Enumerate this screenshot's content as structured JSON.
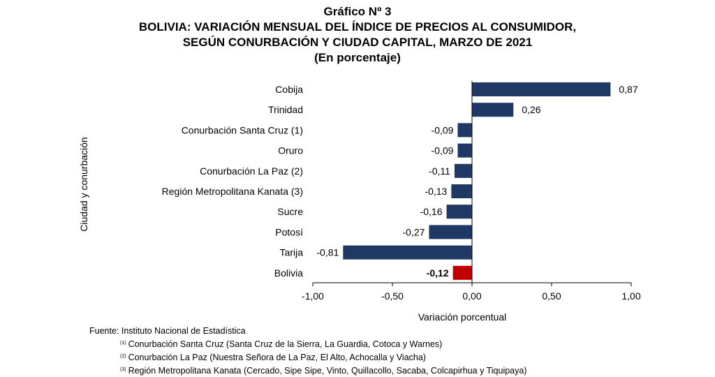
{
  "header": {
    "title_line1": "Gráfico Nº 3",
    "title_line2": "BOLIVIA: VARIACIÓN MENSUAL DEL ÍNDICE DE PRECIOS AL CONSUMIDOR,",
    "title_line3": "SEGÚN CONURBACIÓN Y CIUDAD CAPITAL, MARZO DE 2021",
    "title_line4": "(En porcentaje)"
  },
  "chart_data": {
    "type": "bar",
    "orientation": "horizontal",
    "categories": [
      "Cobija",
      "Trinidad",
      "Conurbación Santa Cruz (1)",
      "Oruro",
      "Conurbación La Paz (2)",
      "Región Metropolitana Kanata (3)",
      "Sucre",
      "Potosí",
      "Tarija",
      "Bolivia"
    ],
    "values": [
      0.87,
      0.26,
      -0.09,
      -0.09,
      -0.11,
      -0.13,
      -0.16,
      -0.27,
      -0.81,
      -0.12
    ],
    "value_labels": [
      "0,87",
      "0,26",
      "-0,09",
      "-0,09",
      "-0,11",
      "-0,13",
      "-0,16",
      "-0,27",
      "-0,81",
      "-0,12"
    ],
    "highlight_index": 9,
    "bar_color": "#1f3864",
    "highlight_color": "#c00000",
    "xlim": [
      -1.0,
      1.0
    ],
    "xticks": [
      -1.0,
      -0.5,
      0.0,
      0.5,
      1.0
    ],
    "xtick_labels": [
      "-1,00",
      "-0,50",
      "0,00",
      "0,50",
      "1,00"
    ],
    "xlabel": "Variación porcentual",
    "ylabel": "Ciudad y conurbación",
    "grid": false,
    "legend": false
  },
  "footer": {
    "source": "Fuente: Instituto Nacional de Estadística",
    "notes": [
      {
        "mark": "(1)",
        "text": "Conurbación Santa Cruz (Santa Cruz de la Sierra, La Guardia, Cotoca y Warnes)"
      },
      {
        "mark": "(2)",
        "text": "Conurbación La Paz (Nuestra Señora de La Paz, El Alto, Achocalla y Viacha)"
      },
      {
        "mark": "(3)",
        "text": "Región Metropolitana Kanata (Cercado, Sipe Sipe, Vinto, Quillacollo, Sacaba, Colcapirhua y Tiquipaya)"
      }
    ]
  }
}
